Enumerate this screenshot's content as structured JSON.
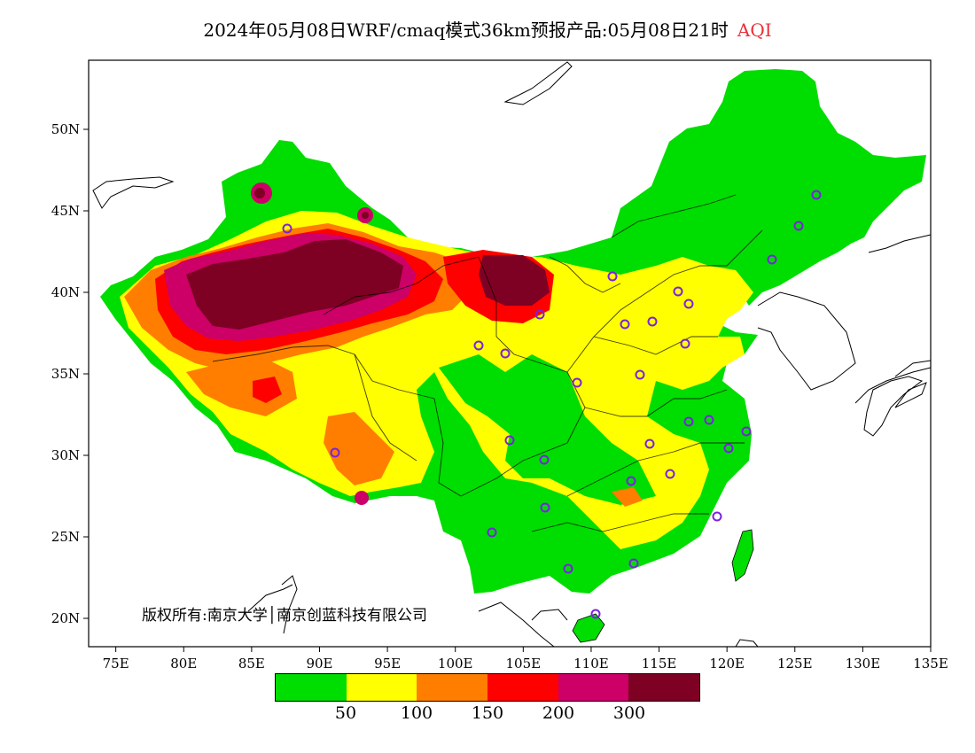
{
  "title": {
    "main": "2024年05月08日WRF/cmaq模式36km预报产品:05月08日21时",
    "variable": "AQI",
    "variable_color": "#e8303a"
  },
  "copyright": "版权所有:南京大学│南京创蓝科技有限公司",
  "axes": {
    "lon_ticks": [
      "75E",
      "80E",
      "85E",
      "90E",
      "95E",
      "100E",
      "105E",
      "110E",
      "115E",
      "120E",
      "125E",
      "130E",
      "135E"
    ],
    "lat_ticks": [
      "20N",
      "25N",
      "30N",
      "35N",
      "40N",
      "45N",
      "50N"
    ]
  },
  "legend": {
    "colors": [
      "#00dd00",
      "#ffff00",
      "#ff7e00",
      "#ff0000",
      "#cc0066",
      "#7e0023"
    ],
    "labels": [
      "50",
      "100",
      "150",
      "200",
      "300"
    ]
  },
  "icons": {
    "station_marker": "circle-icon"
  }
}
